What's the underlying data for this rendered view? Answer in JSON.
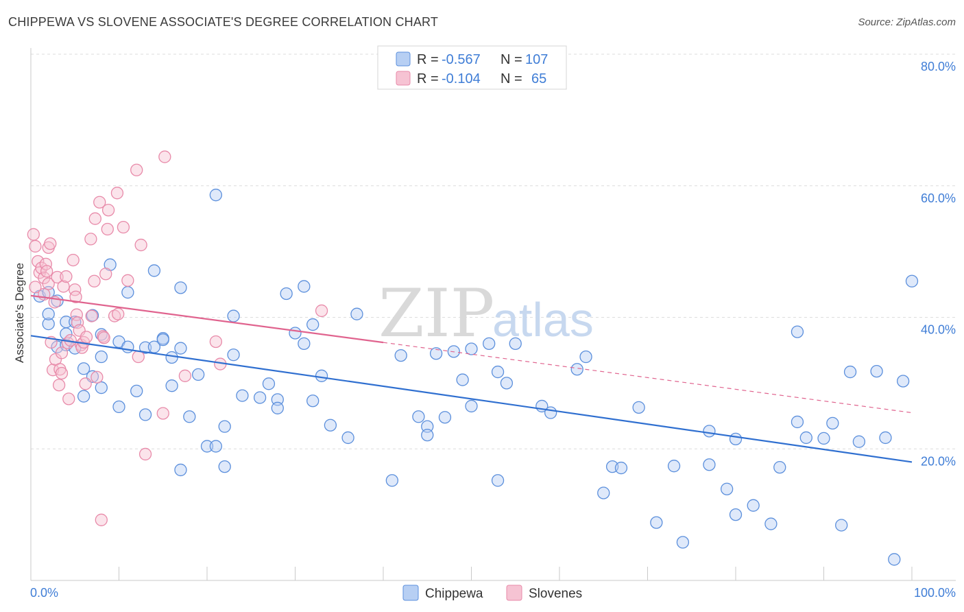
{
  "title": "CHIPPEWA VS SLOVENE ASSOCIATE'S DEGREE CORRELATION CHART",
  "source": "Source: ZipAtlas.com",
  "watermark": {
    "zip": "ZIP",
    "atlas": "atlas"
  },
  "colors": {
    "chippewa": "#5b8fdc",
    "chippewa_fill": "#b7cff3",
    "chippewa_line": "#2f6fd0",
    "slovenes": "#e88aa9",
    "slovenes_fill": "#f6c3d3",
    "slovenes_line": "#e0638e",
    "grid": "#dcdcdc",
    "axis_label": "#3f7dd6"
  },
  "legend": {
    "rows": [
      {
        "r_label": "R =",
        "r_value": "-0.567",
        "n_label": "N =",
        "n_value": "107"
      },
      {
        "r_label": "R =",
        "r_value": "-0.104",
        "n_label": "N =",
        "n_value": "65"
      }
    ]
  },
  "chart_data": {
    "type": "scatter",
    "title": "CHIPPEWA VS SLOVENE ASSOCIATE'S DEGREE CORRELATION CHART",
    "xlabel": "",
    "ylabel": "Associate's Degree",
    "xlim": [
      0,
      100
    ],
    "ylim": [
      0,
      80
    ],
    "x_tick_labels": [
      "0.0%",
      "100.0%"
    ],
    "y_tick_values": [
      20,
      40,
      60,
      80
    ],
    "y_tick_labels": [
      "20.0%",
      "40.0%",
      "60.0%",
      "80.0%"
    ],
    "grid": true,
    "legend_position": "top-center",
    "series": [
      {
        "name": "Chippewa",
        "r": -0.567,
        "n": 107,
        "trend": {
          "x": [
            0,
            100
          ],
          "y": [
            37.2,
            18.0
          ]
        },
        "points": [
          [
            1,
            43.2
          ],
          [
            2,
            43.8
          ],
          [
            2,
            39
          ],
          [
            2,
            40.5
          ],
          [
            3,
            42.5
          ],
          [
            3,
            35.5
          ],
          [
            4,
            37.5
          ],
          [
            4,
            35.8
          ],
          [
            4,
            39.3
          ],
          [
            5,
            39.3
          ],
          [
            5,
            35.3
          ],
          [
            6,
            32.2
          ],
          [
            6,
            28
          ],
          [
            7,
            31
          ],
          [
            7,
            40.3
          ],
          [
            8,
            37.4
          ],
          [
            8,
            34
          ],
          [
            8,
            29.3
          ],
          [
            9,
            48
          ],
          [
            10,
            26.4
          ],
          [
            10,
            36.3
          ],
          [
            11,
            35.5
          ],
          [
            11,
            43.8
          ],
          [
            12,
            28.8
          ],
          [
            13,
            25.2
          ],
          [
            13,
            35.4
          ],
          [
            14,
            47.1
          ],
          [
            14,
            35.5
          ],
          [
            15,
            36.8
          ],
          [
            15,
            36.6
          ],
          [
            16,
            29.6
          ],
          [
            16,
            33.9
          ],
          [
            17,
            44.5
          ],
          [
            17,
            35.3
          ],
          [
            17,
            16.8
          ],
          [
            18,
            24.9
          ],
          [
            19,
            31.3
          ],
          [
            20,
            20.4
          ],
          [
            21,
            20.4
          ],
          [
            21,
            58.6
          ],
          [
            22,
            23.4
          ],
          [
            22,
            17.3
          ],
          [
            23,
            40.2
          ],
          [
            23,
            34.3
          ],
          [
            24,
            28.1
          ],
          [
            26,
            27.8
          ],
          [
            27,
            29.9
          ],
          [
            28,
            27.5
          ],
          [
            28,
            26.2
          ],
          [
            29,
            43.6
          ],
          [
            30,
            37.6
          ],
          [
            31,
            44.7
          ],
          [
            31,
            36
          ],
          [
            32,
            38.9
          ],
          [
            32,
            27.3
          ],
          [
            33,
            31.1
          ],
          [
            34,
            23.6
          ],
          [
            36,
            21.7
          ],
          [
            37,
            40.5
          ],
          [
            41,
            15.2
          ],
          [
            42,
            34.2
          ],
          [
            44,
            24.9
          ],
          [
            45,
            23.4
          ],
          [
            45,
            22.1
          ],
          [
            46,
            34.5
          ],
          [
            47,
            24.8
          ],
          [
            48,
            34.8
          ],
          [
            49,
            30.5
          ],
          [
            50,
            26.5
          ],
          [
            50,
            35.2
          ],
          [
            52,
            36
          ],
          [
            53,
            31.7
          ],
          [
            53,
            15.2
          ],
          [
            54,
            30
          ],
          [
            55,
            36
          ],
          [
            58,
            26.5
          ],
          [
            59,
            25.5
          ],
          [
            62,
            32.1
          ],
          [
            63,
            34
          ],
          [
            65,
            13.3
          ],
          [
            66,
            17.3
          ],
          [
            67,
            17.1
          ],
          [
            69,
            26.3
          ],
          [
            71,
            8.8
          ],
          [
            73,
            17.4
          ],
          [
            74,
            5.8
          ],
          [
            77,
            22.7
          ],
          [
            77,
            17.6
          ],
          [
            79,
            13.9
          ],
          [
            80,
            21.5
          ],
          [
            80,
            10
          ],
          [
            82,
            11.4
          ],
          [
            84,
            8.6
          ],
          [
            85,
            17.2
          ],
          [
            87,
            24.1
          ],
          [
            87,
            37.8
          ],
          [
            88,
            21.7
          ],
          [
            90,
            21.6
          ],
          [
            91,
            23.9
          ],
          [
            92,
            8.4
          ],
          [
            93,
            31.7
          ],
          [
            94,
            21.1
          ],
          [
            96,
            31.8
          ],
          [
            97,
            21.7
          ],
          [
            99,
            30.3
          ],
          [
            98,
            3.2
          ],
          [
            100,
            45.5
          ]
        ]
      },
      {
        "name": "Slovenes",
        "r": -0.104,
        "n": 65,
        "trend": {
          "x": [
            0,
            100
          ],
          "y": [
            43.3,
            25.5
          ],
          "solid_until_x": 40
        },
        "points": [
          [
            0.3,
            52.6
          ],
          [
            0.5,
            50.8
          ],
          [
            0.5,
            44.6
          ],
          [
            0.8,
            48.5
          ],
          [
            1,
            46.8
          ],
          [
            1.2,
            47.5
          ],
          [
            1.5,
            46
          ],
          [
            1.5,
            43.5
          ],
          [
            1.7,
            48.1
          ],
          [
            1.8,
            47
          ],
          [
            2,
            50.6
          ],
          [
            2,
            45.1
          ],
          [
            2.2,
            51.2
          ],
          [
            2.3,
            36.2
          ],
          [
            2.5,
            32
          ],
          [
            2.7,
            42.3
          ],
          [
            2.8,
            33.6
          ],
          [
            3,
            46.1
          ],
          [
            3.2,
            29.7
          ],
          [
            3.3,
            32.1
          ],
          [
            3.5,
            31.5
          ],
          [
            3.5,
            34.6
          ],
          [
            3.7,
            44.7
          ],
          [
            4,
            46.2
          ],
          [
            4.2,
            36.1
          ],
          [
            4.3,
            27.6
          ],
          [
            4.5,
            36.5
          ],
          [
            4.8,
            48.7
          ],
          [
            5,
            44.2
          ],
          [
            5.1,
            43.1
          ],
          [
            5.2,
            40.4
          ],
          [
            5.3,
            39.2
          ],
          [
            5.5,
            38
          ],
          [
            5.7,
            35.8
          ],
          [
            5.8,
            35.4
          ],
          [
            6,
            36.2
          ],
          [
            6.2,
            29.9
          ],
          [
            6.3,
            37
          ],
          [
            6.8,
            51.9
          ],
          [
            6.9,
            40.2
          ],
          [
            7.2,
            45.5
          ],
          [
            7.3,
            55
          ],
          [
            7.5,
            30.9
          ],
          [
            7.8,
            57.5
          ],
          [
            8,
            9.2
          ],
          [
            8.2,
            37.1
          ],
          [
            8.3,
            36.9
          ],
          [
            8.5,
            46.6
          ],
          [
            8.7,
            53.4
          ],
          [
            8.8,
            56.3
          ],
          [
            9.5,
            40.2
          ],
          [
            9.8,
            58.9
          ],
          [
            9.9,
            40.5
          ],
          [
            10.5,
            53.7
          ],
          [
            11,
            45.6
          ],
          [
            12,
            62.4
          ],
          [
            12.2,
            34
          ],
          [
            12.5,
            51
          ],
          [
            13,
            19.2
          ],
          [
            15,
            25.4
          ],
          [
            15.2,
            64.4
          ],
          [
            17.5,
            31.1
          ],
          [
            21,
            36.3
          ],
          [
            21.5,
            32.9
          ],
          [
            33,
            41
          ]
        ]
      }
    ]
  }
}
